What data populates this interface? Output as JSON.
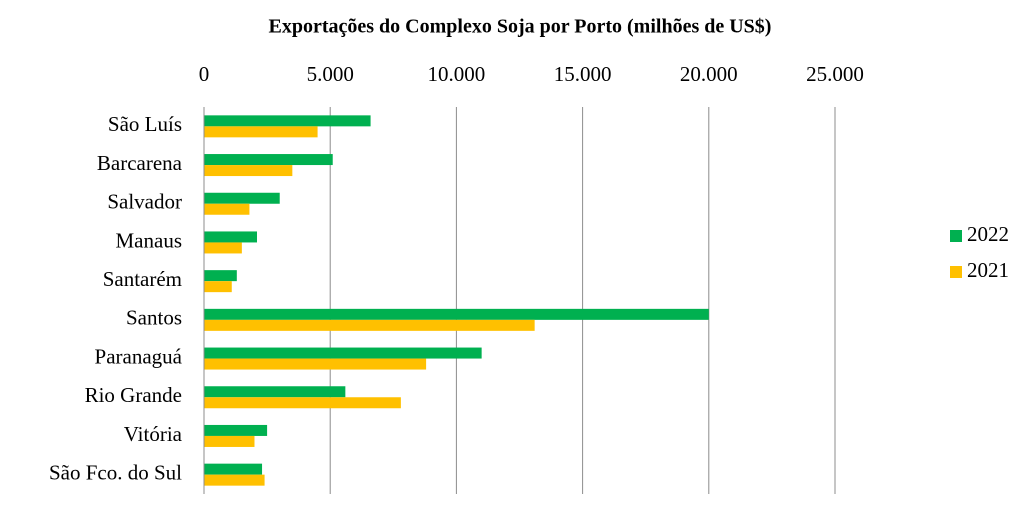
{
  "chart_data": {
    "type": "hbar",
    "title": "Exportações do Complexo Soja por Porto (milhões de US$)",
    "categories": [
      "São Luís",
      "Barcarena",
      "Salvador",
      "Manaus",
      "Santarém",
      "Santos",
      "Paranaguá",
      "Rio Grande",
      "Vitória",
      "São Fco. do Sul"
    ],
    "series": [
      {
        "name": "2022",
        "color": "#00b050",
        "values": [
          6600,
          5100,
          3000,
          2100,
          1300,
          20000,
          11000,
          5600,
          2500,
          2300
        ]
      },
      {
        "name": "2021",
        "color": "#ffc000",
        "values": [
          4500,
          3500,
          1800,
          1500,
          1100,
          13100,
          8800,
          7800,
          2000,
          2400
        ]
      }
    ],
    "xlim": [
      0,
      25000
    ],
    "xticks": [
      0,
      {
        "value": 5000,
        "label": "5.000"
      },
      {
        "value": 10000,
        "label": "10.000"
      },
      {
        "value": 15000,
        "label": "15.000"
      },
      {
        "value": 20000,
        "label": "20.000"
      },
      {
        "value": 25000,
        "label": "25.000"
      }
    ],
    "grid": true,
    "legend": "right"
  }
}
